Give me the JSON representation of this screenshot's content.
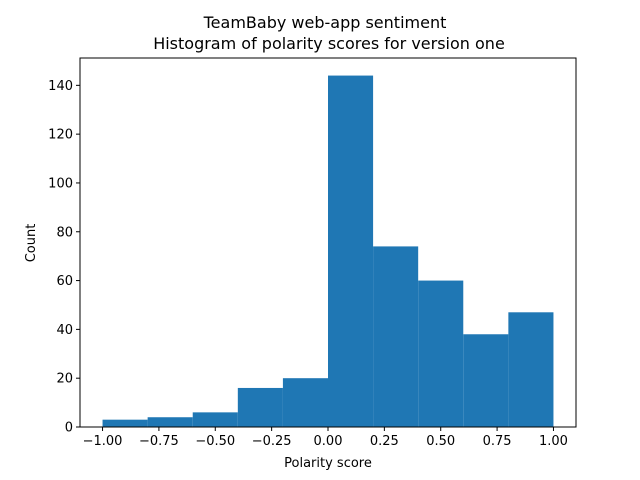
{
  "chart_data": {
    "type": "bar",
    "title": "TeamBaby web-app sentiment",
    "subtitle": "Histogram of polarity scores for version one",
    "xlabel": "Polarity score",
    "ylabel": "Count",
    "bin_edges": [
      -1.0,
      -0.8,
      -0.6,
      -0.4,
      -0.2,
      0.0,
      0.2,
      0.4,
      0.6,
      0.8,
      1.0
    ],
    "values": [
      3,
      4,
      6,
      16,
      20,
      144,
      74,
      60,
      38,
      47
    ],
    "xlim": [
      -1.1,
      1.1
    ],
    "ylim": [
      0,
      151.2
    ],
    "x_ticks": [
      -1.0,
      -0.75,
      -0.5,
      -0.25,
      0.0,
      0.25,
      0.5,
      0.75,
      1.0
    ],
    "x_tick_labels": [
      "−1.00",
      "−0.75",
      "−0.50",
      "−0.25",
      "0.00",
      "0.25",
      "0.50",
      "0.75",
      "1.00"
    ],
    "y_ticks": [
      0,
      20,
      40,
      60,
      80,
      100,
      120,
      140
    ],
    "y_tick_labels": [
      "0",
      "20",
      "40",
      "60",
      "80",
      "100",
      "120",
      "140"
    ],
    "bar_color": "#1f77b4",
    "grid": false
  }
}
